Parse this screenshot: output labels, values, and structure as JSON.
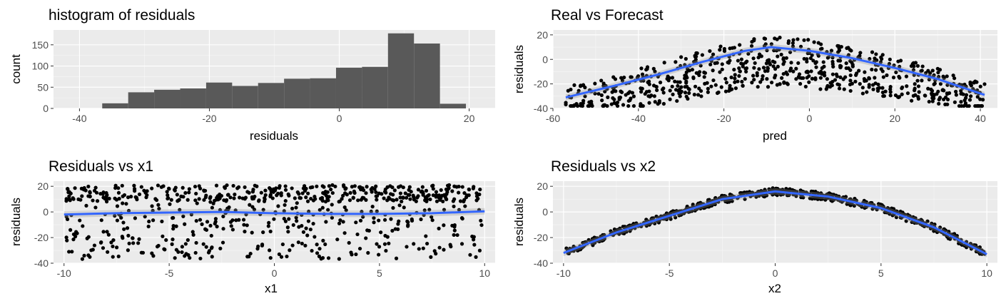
{
  "chart_data": [
    {
      "type": "bar",
      "title": "histogram of residuals",
      "xlabel": "residuals",
      "ylabel": "count",
      "xlim": [
        -44,
        24
      ],
      "ylim": [
        0,
        185
      ],
      "xticks": [
        "-40",
        "-20",
        "0",
        "20"
      ],
      "yticks": [
        "0",
        "50",
        "100",
        "150"
      ],
      "bin_edges": [
        -36.5,
        -32.5,
        -28.5,
        -24.5,
        -20.5,
        -16.5,
        -12.5,
        -8.5,
        -4.5,
        -0.5,
        3.5,
        7.5,
        11.5,
        15.5,
        19.5,
        23.5
      ],
      "values": [
        12,
        38,
        44,
        47,
        61,
        53,
        60,
        70,
        71,
        96,
        98,
        177,
        153,
        11,
        0
      ],
      "grid": true,
      "fill_color": "#595959"
    },
    {
      "type": "scatter",
      "title": "Real vs Forecast",
      "xlabel": "pred",
      "ylabel": "residuals",
      "xlim": [
        -60,
        44
      ],
      "ylim": [
        -40,
        24
      ],
      "xticks": [
        "-60",
        "-40",
        "-20",
        "0",
        "20",
        "40"
      ],
      "yticks": [
        "20",
        "0",
        "-20",
        "-40"
      ],
      "smooth_x": [
        -57,
        -45,
        -35,
        -25,
        -15,
        -9,
        0,
        10,
        20,
        30,
        41
      ],
      "smooth_y": [
        -31,
        -21,
        -12,
        -2,
        7,
        10,
        7,
        1,
        -7,
        -16,
        -29
      ],
      "grid": true,
      "smooth_color": "#3366ff"
    },
    {
      "type": "scatter",
      "title": "Residuals vs  x1",
      "xlabel": "x1",
      "ylabel": "residuals",
      "xlim": [
        -10.5,
        10.5
      ],
      "ylim": [
        -40,
        24
      ],
      "xticks": [
        "-10",
        "-5",
        "0",
        "5",
        "10"
      ],
      "yticks": [
        "20",
        "0",
        "-20",
        "-40"
      ],
      "smooth_x": [
        -10,
        -7.5,
        -5,
        -2.5,
        0,
        2.5,
        5,
        7.5,
        10
      ],
      "smooth_y": [
        -2,
        -1,
        -0.5,
        0,
        -1,
        -1.5,
        -1.5,
        -1,
        0.5
      ],
      "grid": true,
      "smooth_color": "#3366ff"
    },
    {
      "type": "scatter",
      "title": "Residuals vs  x2",
      "xlabel": "x2",
      "ylabel": "residuals",
      "xlim": [
        -10.5,
        10.5
      ],
      "ylim": [
        -40,
        24
      ],
      "xticks": [
        "-10",
        "-5",
        "0",
        "5",
        "10"
      ],
      "yticks": [
        "20",
        "0",
        "-20",
        "-40"
      ],
      "smooth_x": [
        -10,
        -7.5,
        -5,
        -2.5,
        0,
        2.5,
        5,
        7.5,
        10
      ],
      "smooth_y": [
        -32,
        -16,
        -3,
        10,
        16,
        12,
        3,
        -12,
        -33
      ],
      "grid": true,
      "smooth_color": "#3366ff"
    }
  ]
}
